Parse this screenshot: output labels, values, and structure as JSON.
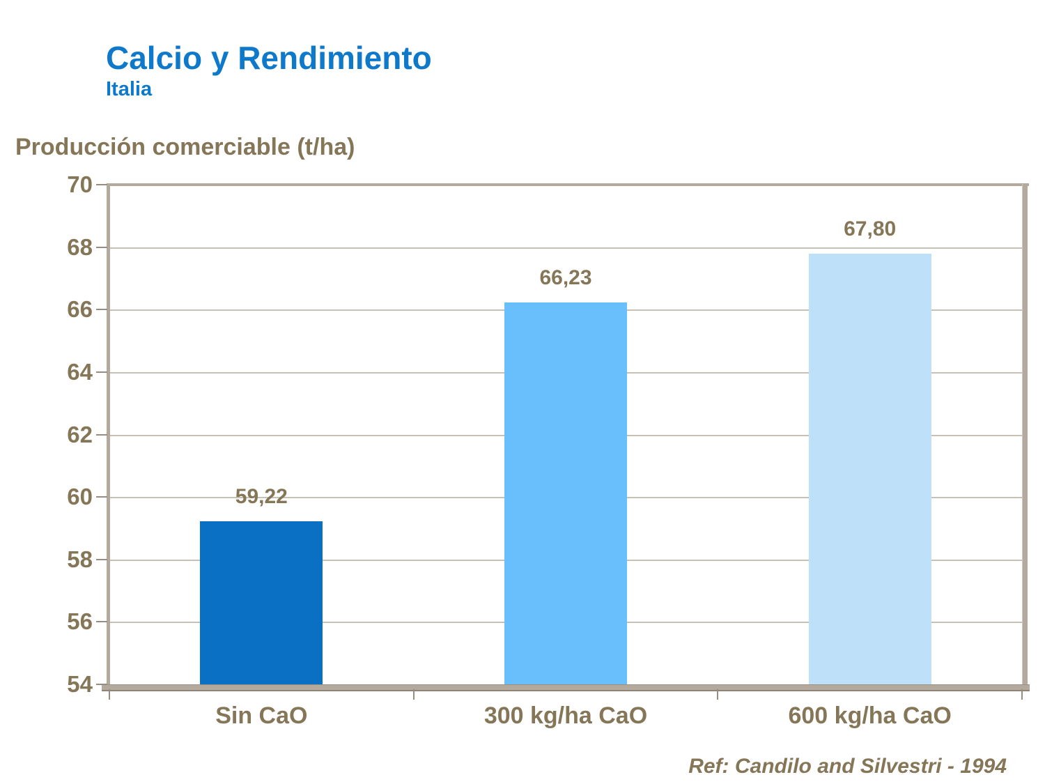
{
  "slide": {
    "title": "Calcio y Rendimiento",
    "subtitle": "Italia",
    "y_axis_title": "Producción comerciable (t/ha)",
    "reference": "Ref: Candilo and Silvestri - 1994"
  },
  "colors": {
    "title_blue": "#0E79CA",
    "text_brown": "#867658",
    "grid_line": "#C9C0B4",
    "axis_frame": "#B3A99C",
    "axis_frame_dark": "#968C7F",
    "bar_colors": [
      "#0A70C4",
      "#69BFFB",
      "#BFE0F9"
    ]
  },
  "chart_data": {
    "type": "bar",
    "title": "Producción comerciable (t/ha)",
    "categories": [
      "Sin CaO",
      "300 kg/ha CaO",
      "600 kg/ha CaO"
    ],
    "values": [
      59.22,
      66.23,
      67.8
    ],
    "value_labels": [
      "59,22",
      "66,23",
      "67,80"
    ],
    "ylabel": "Producción comerciable (t/ha)",
    "xlabel": "",
    "ylim": [
      54,
      70
    ],
    "ytick_step": 2,
    "ytick_labels": [
      "70",
      "68",
      "66",
      "64",
      "62",
      "60",
      "58",
      "56",
      "54"
    ],
    "grid": true,
    "legend": false,
    "annotation": "Ref: Candilo and Silvestri - 1994"
  }
}
